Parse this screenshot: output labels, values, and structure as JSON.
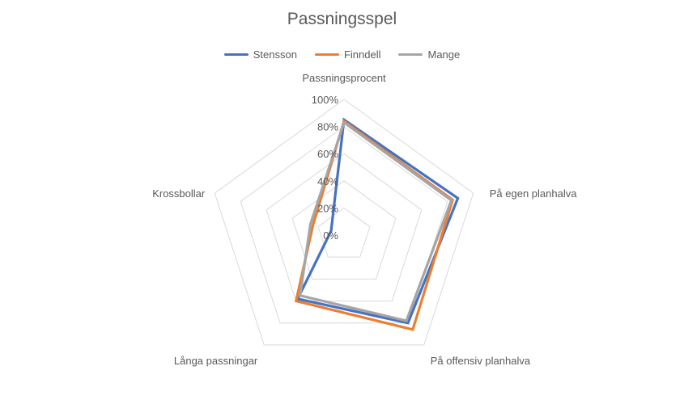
{
  "chart_data": {
    "type": "radar",
    "title": "Passningsspel",
    "categories": [
      "Passningsprocent",
      "På egen planhalva",
      "På offensiv planhalva",
      "Långa passningar",
      "Krossbollar"
    ],
    "tick_labels": [
      "0%",
      "20%",
      "40%",
      "60%",
      "80%",
      "100%"
    ],
    "rlim": [
      0,
      100
    ],
    "legend_position": "top",
    "grid": true,
    "series": [
      {
        "name": "Stensson",
        "color": "#4472C4",
        "values": [
          85,
          88,
          80,
          58,
          10
        ]
      },
      {
        "name": "Finndell",
        "color": "#ED7D31",
        "values": [
          84,
          84,
          86,
          60,
          24
        ]
      },
      {
        "name": "Mange",
        "color": "#A5A5A5",
        "values": [
          83,
          83,
          78,
          55,
          26
        ]
      }
    ]
  }
}
